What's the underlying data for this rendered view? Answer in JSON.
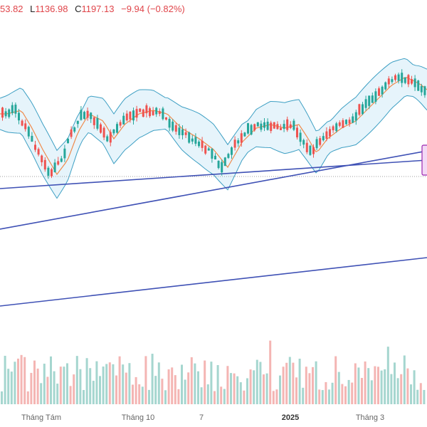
{
  "header": {
    "open_value": "53.82",
    "low_label": "L",
    "low_value": "1136.98",
    "close_label": "C",
    "close_value": "1197.13",
    "change": "−9.94 (−0.82%)"
  },
  "colors": {
    "up": "#26a69a",
    "down": "#ef5350",
    "band_line": "#3d9fc3",
    "band_fill": "#e6f4fb",
    "sma": "#f08a4b",
    "trendline": "#3f51b5",
    "box_fill": "#f3d9f5",
    "box_stroke": "#9c27b0"
  },
  "chart_data": {
    "type": "candlestick",
    "overlays": [
      "bollinger-bands",
      "moving-average",
      "trendlines",
      "volume-bars"
    ],
    "x_ticks": [
      {
        "label": "Tháng Tám",
        "bold": false
      },
      {
        "label": "Tháng 10",
        "bold": false
      },
      {
        "label": "7",
        "bold": false
      },
      {
        "label": "2025",
        "bold": true
      },
      {
        "label": "Tháng 3",
        "bold": false
      }
    ],
    "last_close": 1197.13,
    "day_low": 1136.98
  }
}
